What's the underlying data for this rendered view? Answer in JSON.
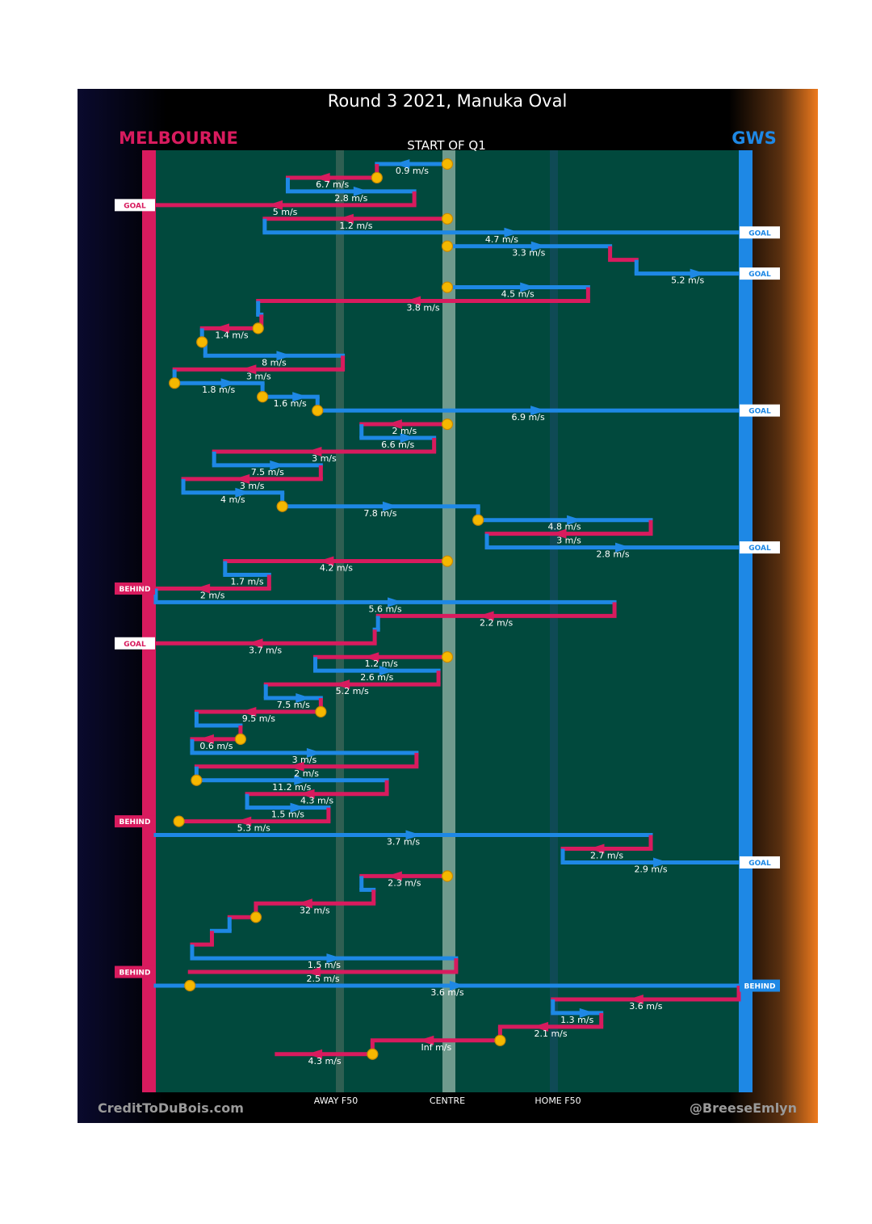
{
  "chart_data": {
    "type": "line",
    "title": "Round 3 2021, Manuka Oval",
    "subtitle": "START OF Q1",
    "teams": {
      "left": {
        "name": "MELBOURNE",
        "color": "#d81b5e"
      },
      "right": {
        "name": "GWS",
        "color": "#1e88e5"
      }
    },
    "x_ticks": [
      "AWAY F50",
      "CENTRE",
      "HOME F50"
    ],
    "credits": {
      "left": "CreditToDuBois.com",
      "right": "@BreeseEmlyn"
    },
    "colors": {
      "field": "#01493d",
      "left_accent": "#d81b5e",
      "right_accent": "#1e88e5",
      "gold": "#f5b800",
      "bg": "#000000",
      "orange": "#ee7a1d",
      "navy": "#0a0a2e"
    },
    "segments": [
      {
        "team": "GWS",
        "x1": 0,
        "x2": -64,
        "y": 1,
        "label": "0.9 m/s"
      },
      {
        "team": "MEL",
        "x1": -64,
        "x2": -145,
        "y": 2,
        "label": "6.7 m/s"
      },
      {
        "team": "GWS",
        "x1": -145,
        "x2": -30,
        "y": 3,
        "label": "2.8 m/s"
      },
      {
        "team": "MEL",
        "x1": -30,
        "x2": -265,
        "y": 4,
        "label": "5 m/s"
      },
      {
        "team": "MEL",
        "x1": 0,
        "x2": -166,
        "y": 5,
        "label": "1.2 m/s"
      },
      {
        "team": "GWS",
        "x1": -166,
        "x2": 265,
        "y": 6,
        "label": "4.7 m/s"
      },
      {
        "team": "GWS",
        "x1": 0,
        "x2": 148,
        "y": 7,
        "label": "3.3 m/s"
      },
      {
        "team": "MEL",
        "x1": 148,
        "x2": 172,
        "y": 8,
        "label": ""
      },
      {
        "team": "GWS",
        "x1": 172,
        "x2": 265,
        "y": 9,
        "label": "5.2 m/s"
      },
      {
        "team": "GWS",
        "x1": 0,
        "x2": 128,
        "y": 10,
        "label": "4.5 m/s"
      },
      {
        "team": "MEL",
        "x1": 128,
        "x2": -172,
        "y": 11,
        "label": "3.8 m/s"
      },
      {
        "team": "GWS",
        "x1": -172,
        "x2": -169,
        "y": 12,
        "label": ""
      },
      {
        "team": "MEL",
        "x1": -169,
        "x2": -223,
        "y": 13,
        "label": "1.4 m/s"
      },
      {
        "team": "GWS",
        "x1": -223,
        "x2": -220,
        "y": 14,
        "label": ""
      },
      {
        "team": "GWS",
        "x1": -220,
        "x2": -95,
        "y": 15,
        "label": "8 m/s"
      },
      {
        "team": "MEL",
        "x1": -95,
        "x2": -248,
        "y": 16,
        "label": "3 m/s"
      },
      {
        "team": "GWS",
        "x1": -248,
        "x2": -168,
        "y": 17,
        "label": "1.8 m/s"
      },
      {
        "team": "GWS",
        "x1": -168,
        "x2": -118,
        "y": 18,
        "label": "1.6 m/s"
      },
      {
        "team": "GWS",
        "x1": -118,
        "x2": 265,
        "y": 19,
        "label": "6.9 m/s"
      },
      {
        "team": "MEL",
        "x1": 0,
        "x2": -78,
        "y": 20,
        "label": "2 m/s"
      },
      {
        "team": "GWS",
        "x1": -78,
        "x2": -12,
        "y": 21,
        "label": "6.6 m/s"
      },
      {
        "team": "MEL",
        "x1": -12,
        "x2": -212,
        "y": 22,
        "label": "3 m/s"
      },
      {
        "team": "GWS",
        "x1": -212,
        "x2": -115,
        "y": 23,
        "label": "7.5 m/s"
      },
      {
        "team": "MEL",
        "x1": -115,
        "x2": -240,
        "y": 24,
        "label": "3 m/s"
      },
      {
        "team": "GWS",
        "x1": -240,
        "x2": -150,
        "y": 25,
        "label": "4 m/s"
      },
      {
        "team": "GWS",
        "x1": -150,
        "x2": 28,
        "y": 26,
        "label": "7.8 m/s"
      },
      {
        "team": "GWS",
        "x1": 28,
        "x2": 185,
        "y": 27,
        "label": "4.8 m/s"
      },
      {
        "team": "MEL",
        "x1": 185,
        "x2": 36,
        "y": 28,
        "label": "3 m/s"
      },
      {
        "team": "GWS",
        "x1": 36,
        "x2": 265,
        "y": 29,
        "label": "2.8 m/s"
      },
      {
        "team": "MEL",
        "x1": 0,
        "x2": -202,
        "y": 30,
        "label": "4.2 m/s"
      },
      {
        "team": "GWS",
        "x1": -202,
        "x2": -162,
        "y": 31,
        "label": "1.7 m/s"
      },
      {
        "team": "MEL",
        "x1": -162,
        "x2": -265,
        "y": 32,
        "label": "2 m/s"
      },
      {
        "team": "GWS",
        "x1": -265,
        "x2": 152,
        "y": 33,
        "label": "5.6 m/s"
      },
      {
        "team": "MEL",
        "x1": 152,
        "x2": -63,
        "y": 34,
        "label": "2.2 m/s"
      },
      {
        "team": "GWS",
        "x1": -63,
        "x2": -66,
        "y": 35,
        "label": ""
      },
      {
        "team": "MEL",
        "x1": -66,
        "x2": -265,
        "y": 36,
        "label": "3.7 m/s"
      },
      {
        "team": "MEL",
        "x1": 0,
        "x2": -120,
        "y": 37,
        "label": "1.2 m/s"
      },
      {
        "team": "GWS",
        "x1": -120,
        "x2": -8,
        "y": 38,
        "label": "2.6 m/s"
      },
      {
        "team": "MEL",
        "x1": -8,
        "x2": -165,
        "y": 39,
        "label": "5.2 m/s"
      },
      {
        "team": "GWS",
        "x1": -165,
        "x2": -115,
        "y": 40,
        "label": "7.5 m/s"
      },
      {
        "team": "MEL",
        "x1": -115,
        "x2": -228,
        "y": 41,
        "label": "9.5 m/s"
      },
      {
        "team": "GWS",
        "x1": -228,
        "x2": -188,
        "y": 42,
        "label": ""
      },
      {
        "team": "MEL",
        "x1": -188,
        "x2": -232,
        "y": 43,
        "label": "0.6 m/s"
      },
      {
        "team": "GWS",
        "x1": -232,
        "x2": -28,
        "y": 44,
        "label": "3 m/s"
      },
      {
        "team": "MEL",
        "x1": -28,
        "x2": -228,
        "y": 45,
        "label": "2 m/s"
      },
      {
        "team": "GWS",
        "x1": -228,
        "x2": -55,
        "y": 46,
        "label": "11.2 m/s"
      },
      {
        "team": "MEL",
        "x1": -55,
        "x2": -182,
        "y": 47,
        "label": "4.3 m/s"
      },
      {
        "team": "GWS",
        "x1": -182,
        "x2": -108,
        "y": 48,
        "label": "1.5 m/s"
      },
      {
        "team": "MEL",
        "x1": -108,
        "x2": -244,
        "y": 49,
        "label": "5.3 m/s"
      },
      {
        "team": "GWS",
        "x1": -265,
        "x2": 185,
        "y": 50,
        "label": "3.7 m/s"
      },
      {
        "team": "MEL",
        "x1": 185,
        "x2": 105,
        "y": 51,
        "label": "2.7 m/s"
      },
      {
        "team": "GWS",
        "x1": 105,
        "x2": 265,
        "y": 52,
        "label": "2.9 m/s"
      },
      {
        "team": "MEL",
        "x1": 0,
        "x2": -78,
        "y": 53,
        "label": "2.3 m/s"
      },
      {
        "team": "GWS",
        "x1": -78,
        "x2": -67,
        "y": 54,
        "label": ""
      },
      {
        "team": "MEL",
        "x1": -67,
        "x2": -174,
        "y": 55,
        "label": "32 m/s"
      },
      {
        "team": "MEL",
        "x1": -174,
        "x2": -198,
        "y": 56,
        "label": ""
      },
      {
        "team": "GWS",
        "x1": -198,
        "x2": -214,
        "y": 57,
        "label": ""
      },
      {
        "team": "MEL",
        "x1": -214,
        "x2": -232,
        "y": 58,
        "label": ""
      },
      {
        "team": "GWS",
        "x1": -232,
        "x2": 8,
        "y": 59,
        "label": "1.5 m/s"
      },
      {
        "team": "MEL",
        "x1": 8,
        "x2": -234,
        "y": 60,
        "label": "2.5 m/s"
      },
      {
        "team": "GWS",
        "x1": -265,
        "x2": 265,
        "y": 61,
        "label": "3.6 m/s"
      },
      {
        "team": "MEL",
        "x1": 265,
        "x2": 96,
        "y": 62,
        "label": "3.6 m/s"
      },
      {
        "team": "GWS",
        "x1": 96,
        "x2": 140,
        "y": 63,
        "label": "1.3 m/s"
      },
      {
        "team": "MEL",
        "x1": 140,
        "x2": 48,
        "y": 64,
        "label": "2.1 m/s"
      },
      {
        "team": "MEL",
        "x1": 48,
        "x2": -68,
        "y": 65,
        "label": "Inf m/s"
      },
      {
        "team": "MEL",
        "x1": -68,
        "x2": -155,
        "y": 66,
        "label": "4.3 m/s"
      }
    ],
    "centre_bounces": [
      1,
      5,
      7,
      10,
      20,
      30,
      37,
      53
    ],
    "stoppages": [
      {
        "x": -64,
        "y": 2
      },
      {
        "x": -172,
        "y": 13
      },
      {
        "x": -223,
        "y": 14
      },
      {
        "x": -248,
        "y": 17
      },
      {
        "x": -168,
        "y": 18
      },
      {
        "x": -118,
        "y": 19
      },
      {
        "x": -150,
        "y": 26
      },
      {
        "x": 28,
        "y": 27
      },
      {
        "x": -115,
        "y": 41
      },
      {
        "x": -188,
        "y": 43
      },
      {
        "x": -228,
        "y": 46
      },
      {
        "x": -244,
        "y": 49
      },
      {
        "x": -174,
        "y": 56
      },
      {
        "x": -234,
        "y": 61
      },
      {
        "x": 48,
        "y": 65
      },
      {
        "x": -68,
        "y": 66
      }
    ],
    "scores": [
      {
        "side": "left",
        "y": 4,
        "text": "GOAL"
      },
      {
        "side": "right",
        "y": 6,
        "text": "GOAL"
      },
      {
        "side": "right",
        "y": 9,
        "text": "GOAL"
      },
      {
        "side": "right",
        "y": 19,
        "text": "GOAL"
      },
      {
        "side": "right",
        "y": 29,
        "text": "GOAL"
      },
      {
        "side": "left",
        "y": 32,
        "text": "BEHIND"
      },
      {
        "side": "left",
        "y": 36,
        "text": "GOAL"
      },
      {
        "side": "left",
        "y": 49,
        "text": "BEHIND"
      },
      {
        "side": "right",
        "y": 52,
        "text": "GOAL"
      },
      {
        "side": "left",
        "y": 60,
        "text": "BEHIND"
      },
      {
        "side": "right",
        "y": 61,
        "text": "BEHIND"
      }
    ]
  }
}
